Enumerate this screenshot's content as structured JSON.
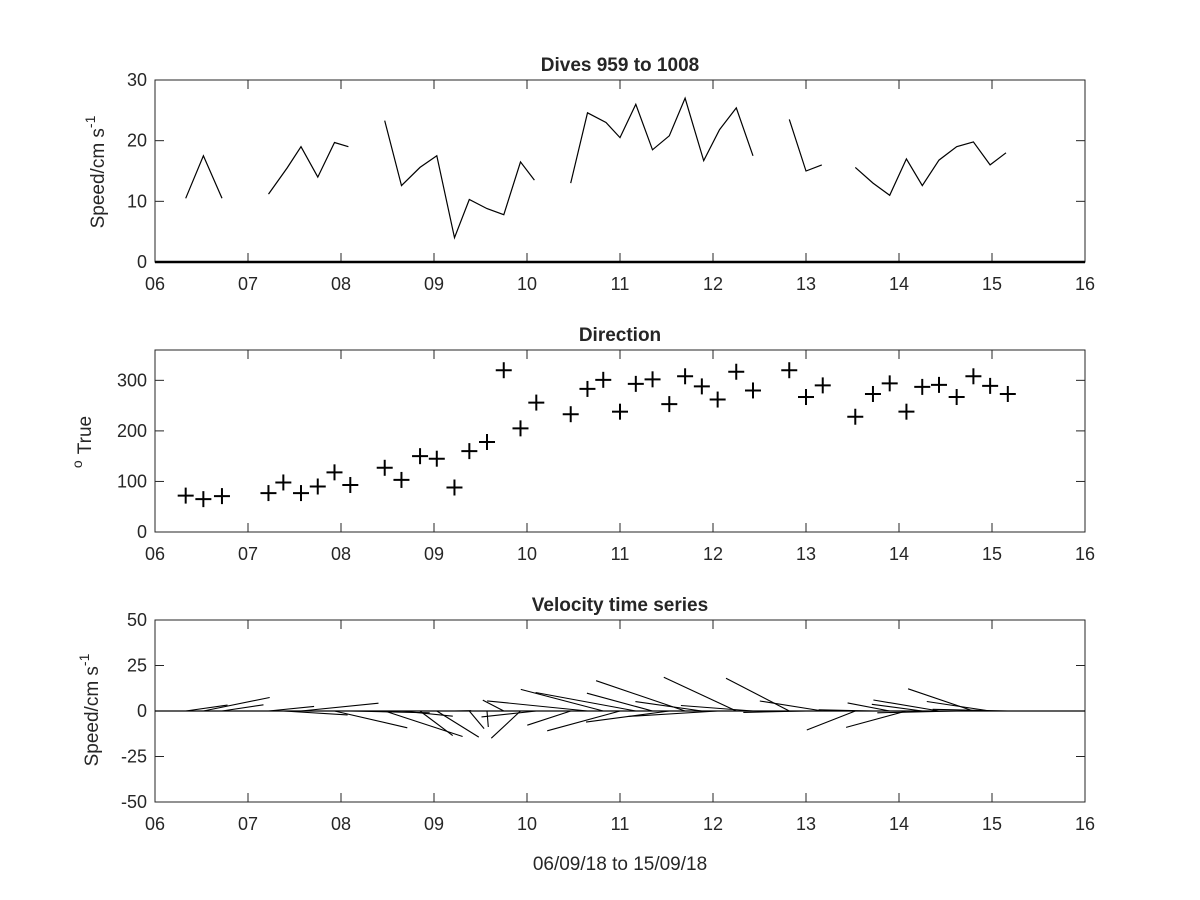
{
  "chart_data": [
    {
      "type": "line",
      "title": "Dives 959 to 1008",
      "ylabel": "Speed/cm s",
      "ylabel_superscript": "-1",
      "xlim": [
        6,
        16
      ],
      "ylim": [
        0,
        30
      ],
      "xticks": [
        "06",
        "07",
        "08",
        "09",
        "10",
        "11",
        "12",
        "13",
        "14",
        "15",
        "16"
      ],
      "yticks": [
        "0",
        "10",
        "20",
        "30"
      ],
      "segments": [
        [
          [
            6.33,
            10.5
          ],
          [
            6.52,
            17.5
          ],
          [
            6.72,
            10.5
          ]
        ],
        [
          [
            7.22,
            11.2
          ],
          [
            7.42,
            15.5
          ],
          [
            7.57,
            19.0
          ],
          [
            7.75,
            14.0
          ],
          [
            7.93,
            19.7
          ],
          [
            8.08,
            19.0
          ]
        ],
        [
          [
            8.47,
            23.3
          ],
          [
            8.65,
            12.6
          ],
          [
            8.85,
            15.6
          ],
          [
            9.03,
            17.5
          ],
          [
            9.22,
            4.0
          ],
          [
            9.38,
            10.3
          ],
          [
            9.57,
            8.8
          ],
          [
            9.75,
            7.8
          ],
          [
            9.93,
            16.5
          ],
          [
            10.08,
            13.5
          ]
        ],
        [
          [
            10.47,
            13.0
          ],
          [
            10.65,
            24.6
          ],
          [
            10.85,
            23.0
          ],
          [
            11.0,
            20.5
          ],
          [
            11.17,
            26.0
          ],
          [
            11.35,
            18.5
          ],
          [
            11.53,
            20.8
          ],
          [
            11.7,
            27.0
          ],
          [
            11.9,
            16.7
          ],
          [
            12.07,
            21.8
          ],
          [
            12.25,
            25.4
          ],
          [
            12.43,
            17.5
          ]
        ],
        [
          [
            12.82,
            23.5
          ],
          [
            13.0,
            15.0
          ],
          [
            13.17,
            16.0
          ]
        ],
        [
          [
            13.53,
            15.6
          ],
          [
            13.72,
            13.0
          ],
          [
            13.9,
            11.0
          ],
          [
            14.08,
            17.0
          ],
          [
            14.25,
            12.6
          ],
          [
            14.43,
            16.8
          ],
          [
            14.62,
            19.0
          ],
          [
            14.8,
            19.8
          ],
          [
            14.98,
            16.0
          ],
          [
            15.15,
            18.0
          ]
        ]
      ]
    },
    {
      "type": "scatter",
      "title": "Direction",
      "ylabel": "True",
      "ylabel_prefix_superscript": "o",
      "xlim": [
        6,
        16
      ],
      "ylim": [
        0,
        360
      ],
      "xticks": [
        "06",
        "07",
        "08",
        "09",
        "10",
        "11",
        "12",
        "13",
        "14",
        "15",
        "16"
      ],
      "yticks": [
        "0",
        "100",
        "200",
        "300"
      ],
      "points": [
        [
          6.33,
          72
        ],
        [
          6.52,
          65
        ],
        [
          6.72,
          71
        ],
        [
          7.22,
          77
        ],
        [
          7.38,
          98
        ],
        [
          7.57,
          77
        ],
        [
          7.75,
          90
        ],
        [
          7.93,
          118
        ],
        [
          8.1,
          93
        ],
        [
          8.47,
          127
        ],
        [
          8.65,
          103
        ],
        [
          8.85,
          150
        ],
        [
          9.03,
          145
        ],
        [
          9.22,
          88
        ],
        [
          9.38,
          160
        ],
        [
          9.57,
          178
        ],
        [
          9.75,
          320
        ],
        [
          9.93,
          205
        ],
        [
          10.1,
          256
        ],
        [
          10.47,
          233
        ],
        [
          10.65,
          283
        ],
        [
          10.82,
          301
        ],
        [
          11.0,
          238
        ],
        [
          11.17,
          293
        ],
        [
          11.35,
          302
        ],
        [
          11.53,
          253
        ],
        [
          11.7,
          308
        ],
        [
          11.88,
          288
        ],
        [
          12.05,
          262
        ],
        [
          12.25,
          317
        ],
        [
          12.43,
          280
        ],
        [
          12.82,
          320
        ],
        [
          13.0,
          267
        ],
        [
          13.18,
          290
        ],
        [
          13.53,
          228
        ],
        [
          13.72,
          273
        ],
        [
          13.9,
          294
        ],
        [
          14.08,
          238
        ],
        [
          14.25,
          287
        ],
        [
          14.43,
          291
        ],
        [
          14.62,
          267
        ],
        [
          14.8,
          308
        ],
        [
          14.98,
          289
        ],
        [
          15.17,
          273
        ]
      ]
    },
    {
      "type": "quiver",
      "title": "Velocity time series",
      "ylabel": "Speed/cm s",
      "ylabel_superscript": "-1",
      "xlabel": "06/09/18 to 15/09/18",
      "xlim": [
        6,
        16
      ],
      "ylim": [
        -50,
        50
      ],
      "xticks": [
        "06",
        "07",
        "08",
        "09",
        "10",
        "11",
        "12",
        "13",
        "14",
        "15",
        "16"
      ],
      "yticks": [
        "-50",
        "-25",
        "0",
        "25",
        "50"
      ],
      "baseline": 0,
      "vectors": [
        [
          6.33,
          10.5,
          72
        ],
        [
          6.52,
          17.5,
          65
        ],
        [
          6.72,
          10.5,
          71
        ],
        [
          7.22,
          11.2,
          77
        ],
        [
          7.38,
          15.5,
          98
        ],
        [
          7.57,
          19.0,
          77
        ],
        [
          7.75,
          14.0,
          90
        ],
        [
          7.93,
          19.7,
          118
        ],
        [
          8.1,
          19.0,
          93
        ],
        [
          8.47,
          23.3,
          127
        ],
        [
          8.65,
          12.6,
          103
        ],
        [
          8.85,
          15.6,
          150
        ],
        [
          9.03,
          17.5,
          145
        ],
        [
          9.22,
          4.0,
          88
        ],
        [
          9.38,
          10.3,
          160
        ],
        [
          9.57,
          8.8,
          178
        ],
        [
          9.75,
          7.8,
          320
        ],
        [
          9.93,
          16.5,
          205
        ],
        [
          10.1,
          13.5,
          256
        ],
        [
          10.47,
          13.0,
          233
        ],
        [
          10.65,
          24.6,
          283
        ],
        [
          10.82,
          23.0,
          301
        ],
        [
          11.0,
          20.5,
          238
        ],
        [
          11.17,
          26.0,
          293
        ],
        [
          11.35,
          18.5,
          302
        ],
        [
          11.53,
          20.8,
          253
        ],
        [
          11.7,
          27.0,
          308
        ],
        [
          11.88,
          16.7,
          288
        ],
        [
          12.05,
          21.8,
          262
        ],
        [
          12.25,
          25.4,
          317
        ],
        [
          12.43,
          17.5,
          280
        ],
        [
          12.82,
          23.5,
          320
        ],
        [
          13.0,
          15.0,
          267
        ],
        [
          13.18,
          16.0,
          290
        ],
        [
          13.53,
          15.6,
          228
        ],
        [
          13.72,
          13.0,
          273
        ],
        [
          13.9,
          11.0,
          294
        ],
        [
          14.08,
          17.0,
          238
        ],
        [
          14.25,
          12.6,
          287
        ],
        [
          14.43,
          16.8,
          291
        ],
        [
          14.62,
          19.0,
          267
        ],
        [
          14.8,
          19.8,
          308
        ],
        [
          14.98,
          16.0,
          289
        ],
        [
          15.17,
          18.0,
          273
        ]
      ]
    }
  ]
}
